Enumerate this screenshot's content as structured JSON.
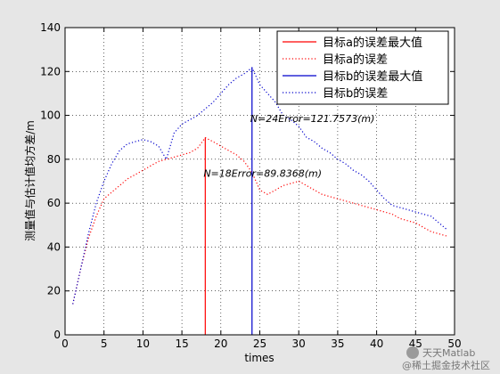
{
  "chart_data": {
    "type": "line",
    "xlabel": "times",
    "ylabel": "测量值与估计值均方差/m",
    "xlim": [
      0,
      50
    ],
    "ylim": [
      0,
      140
    ],
    "xticks": [
      0,
      5,
      10,
      15,
      20,
      25,
      30,
      35,
      40,
      45,
      50
    ],
    "yticks": [
      0,
      20,
      40,
      60,
      80,
      100,
      120,
      140
    ],
    "grid": true,
    "legend_position": "top-right",
    "colors": {
      "target_a": "#ff0000",
      "target_b": "#0000cc",
      "axis": "#000000",
      "background": "#ffffff"
    },
    "series": [
      {
        "name": "目标a的误差",
        "style": "dotted",
        "color": "#ff0000",
        "x": [
          1,
          2,
          3,
          4,
          5,
          6,
          7,
          8,
          9,
          10,
          11,
          12,
          13,
          14,
          15,
          16,
          17,
          18,
          19,
          20,
          21,
          22,
          23,
          24,
          25,
          26,
          27,
          28,
          29,
          30,
          31,
          32,
          33,
          34,
          35,
          36,
          37,
          38,
          39,
          40,
          41,
          42,
          43,
          44,
          45,
          46,
          47,
          48,
          49
        ],
        "y": [
          14,
          30,
          44,
          54,
          62,
          65,
          68,
          71,
          73,
          75,
          77,
          79,
          80,
          81,
          82,
          83,
          85,
          89.8368,
          88,
          86,
          84,
          82,
          79,
          74,
          66,
          64,
          66,
          68,
          69,
          70,
          68,
          66,
          64,
          63,
          62,
          61,
          60,
          59,
          58,
          57,
          56,
          55,
          53,
          52,
          51,
          49,
          47,
          46,
          45
        ]
      },
      {
        "name": "目标b的误差",
        "style": "dotted",
        "color": "#0000cc",
        "x": [
          1,
          2,
          3,
          4,
          5,
          6,
          7,
          8,
          9,
          10,
          11,
          12,
          13,
          14,
          15,
          16,
          17,
          18,
          19,
          20,
          21,
          22,
          23,
          24,
          25,
          26,
          27,
          28,
          29,
          30,
          31,
          32,
          33,
          34,
          35,
          36,
          37,
          38,
          39,
          40,
          41,
          42,
          43,
          44,
          45,
          46,
          47,
          48,
          49
        ],
        "y": [
          14,
          30,
          46,
          60,
          70,
          78,
          84,
          87,
          88,
          89,
          88,
          86,
          80,
          92,
          96,
          98,
          100,
          103,
          106,
          110,
          114,
          117,
          119,
          121.7573,
          114,
          110,
          106,
          100,
          98,
          95,
          90,
          88,
          85,
          83,
          80,
          78,
          75,
          73,
          70,
          66,
          62,
          59,
          58,
          57,
          56,
          55,
          54,
          51,
          48
        ]
      }
    ],
    "vlines": [
      {
        "name": "目标a的误差最大值",
        "x": 18,
        "y": 89.8368,
        "color": "#ff0000"
      },
      {
        "name": "目标b的误差最大值",
        "x": 24,
        "y": 121.7573,
        "color": "#0000cc"
      }
    ],
    "annotations": [
      {
        "text": "N=18Error=89.8368(m)",
        "x": 18,
        "y": 72
      },
      {
        "text": "N=24Error=121.7573(m)",
        "x": 24,
        "y": 97
      }
    ],
    "legend": [
      {
        "label": "目标a的误差最大值",
        "color": "#ff0000",
        "style": "solid"
      },
      {
        "label": "目标a的误差",
        "color": "#ff0000",
        "style": "dotted"
      },
      {
        "label": "目标b的误差最大值",
        "color": "#0000cc",
        "style": "solid"
      },
      {
        "label": "目标b的误差",
        "color": "#0000cc",
        "style": "dotted"
      }
    ]
  },
  "watermark": {
    "line1": "天天Matlab",
    "line2": "@稀土掘金技术社区"
  }
}
